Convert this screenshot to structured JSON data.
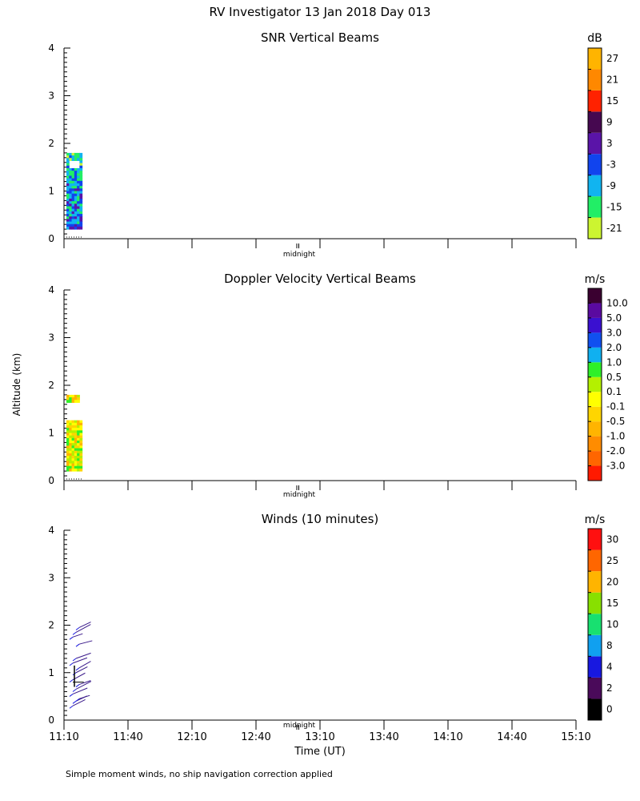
{
  "title": "RV Investigator  13 Jan 2018 Day 013",
  "ylabel": "Altitude (km)",
  "xlabel": "Time (UT)",
  "footer": "Simple moment winds, no ship navigation correction applied",
  "midnight_label": "midnight",
  "x_ticks": [
    "11:10",
    "11:40",
    "12:10",
    "12:40",
    "13:10",
    "13:40",
    "14:10",
    "14:40",
    "15:10"
  ],
  "y_ticks": [
    "0",
    "1",
    "2",
    "3",
    "4"
  ],
  "chart_data": [
    {
      "type": "heatmap",
      "title": "SNR Vertical Beams",
      "unit": "dB",
      "ylim": [
        0,
        4
      ],
      "colorbar": {
        "labels": [
          "-21",
          "-15",
          "-9",
          "-3",
          "3",
          "9",
          "15",
          "21",
          "27"
        ],
        "colors": [
          "#ccf530",
          "#22ee66",
          "#11b4f0",
          "#1144ee",
          "#5a14a8",
          "#460850",
          "#ff2200",
          "#ff8800",
          "#ffb400"
        ]
      },
      "data_time_range": [
        "11:10",
        "11:20"
      ],
      "data_altitude_range": [
        0.2,
        1.8
      ]
    },
    {
      "type": "heatmap",
      "title": "Doppler Velocity Vertical Beams",
      "unit": "m/s",
      "ylim": [
        0,
        4
      ],
      "colorbar": {
        "labels": [
          "-3.0",
          "-2.0",
          "-1.0",
          "-0.5",
          "-0.1",
          "0.1",
          "0.5",
          "1.0",
          "2.0",
          "3.0",
          "5.0",
          "10.0"
        ],
        "colors": [
          "#ff1a00",
          "#ff6600",
          "#ff8c00",
          "#ffb400",
          "#ffd500",
          "#ffff00",
          "#b4f000",
          "#2ef028",
          "#10b0f0",
          "#1050f0",
          "#3a10d0",
          "#5a0aa0",
          "#3a0030"
        ]
      },
      "data_time_range": [
        "11:10",
        "11:20"
      ],
      "data_altitude_range": [
        0.2,
        1.8
      ]
    },
    {
      "type": "wind-barbs",
      "title": "Winds (10 minutes)",
      "unit": "m/s",
      "ylim": [
        0,
        4
      ],
      "colorbar": {
        "labels": [
          "0",
          "2",
          "4",
          "8",
          "10",
          "15",
          "20",
          "25",
          "30"
        ],
        "colors": [
          "#000000",
          "#4a0a5a",
          "#1818e0",
          "#10a0f0",
          "#18e070",
          "#88e000",
          "#ffb400",
          "#ff6600",
          "#ff1010"
        ]
      },
      "data_time_range": [
        "11:10",
        "11:20"
      ],
      "data_altitude_range": [
        0.2,
        2.0
      ]
    }
  ]
}
